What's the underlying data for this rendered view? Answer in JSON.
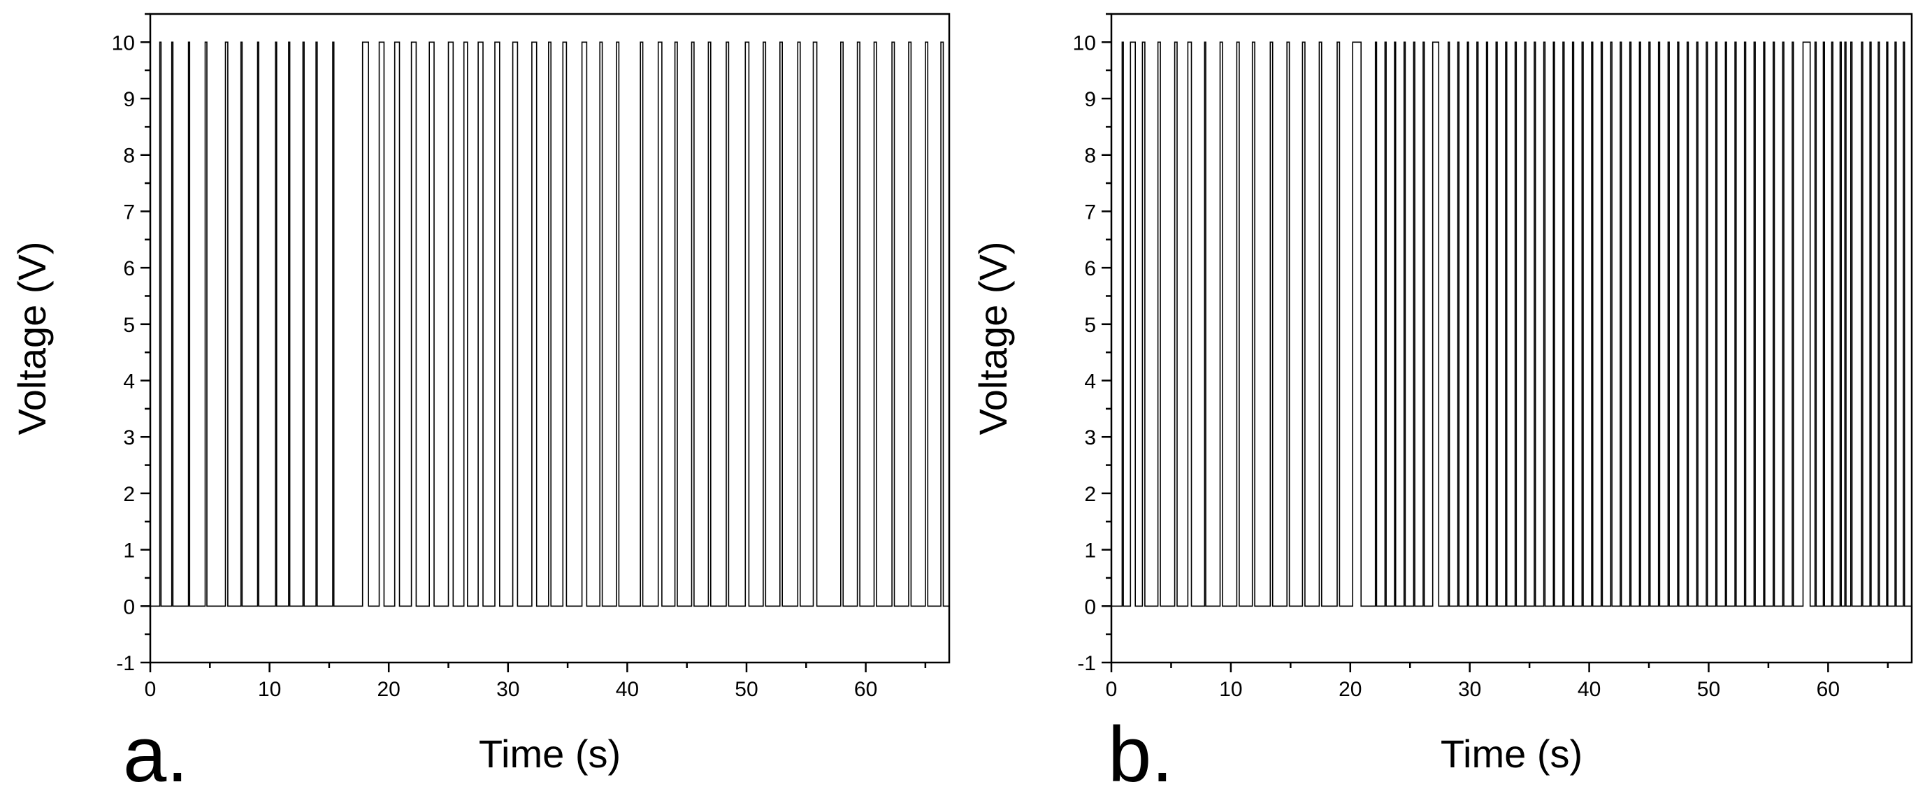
{
  "chart_data": [
    {
      "panel_label": "a.",
      "type": "line",
      "xlabel": "Time (s)",
      "ylabel": "Voltage (V)",
      "xlim": [
        0,
        67
      ],
      "ylim": [
        -1,
        10.5
      ],
      "x_major_ticks": [
        0,
        10,
        20,
        30,
        40,
        50,
        60
      ],
      "y_major_ticks": [
        -1,
        0,
        1,
        2,
        3,
        4,
        5,
        6,
        7,
        8,
        9,
        10
      ],
      "grid": false,
      "low_level": 0,
      "high_level": 10,
      "pulses": [
        [
          0.8,
          0.9
        ],
        [
          1.8,
          1.9
        ],
        [
          3.2,
          3.3
        ],
        [
          4.6,
          4.75
        ],
        [
          6.3,
          6.5
        ],
        [
          7.6,
          7.7
        ],
        [
          9.0,
          9.1
        ],
        [
          10.5,
          10.6
        ],
        [
          11.6,
          11.7
        ],
        [
          12.8,
          12.9
        ],
        [
          13.9,
          14.0
        ],
        [
          15.3,
          15.4
        ],
        [
          17.8,
          18.3
        ],
        [
          19.2,
          19.6
        ],
        [
          20.5,
          20.9
        ],
        [
          21.9,
          22.3
        ],
        [
          23.4,
          23.8
        ],
        [
          25.0,
          25.4
        ],
        [
          26.3,
          26.6
        ],
        [
          27.5,
          27.9
        ],
        [
          28.9,
          29.3
        ],
        [
          30.4,
          30.8
        ],
        [
          32.0,
          32.4
        ],
        [
          33.4,
          33.6
        ],
        [
          34.6,
          34.9
        ],
        [
          36.2,
          36.6
        ],
        [
          37.7,
          37.9
        ],
        [
          39.1,
          39.3
        ],
        [
          41.1,
          41.3
        ],
        [
          42.6,
          42.9
        ],
        [
          44.0,
          44.2
        ],
        [
          45.4,
          45.6
        ],
        [
          46.8,
          47.0
        ],
        [
          48.3,
          48.5
        ],
        [
          49.9,
          50.2
        ],
        [
          51.4,
          51.6
        ],
        [
          52.8,
          53.0
        ],
        [
          54.3,
          54.5
        ],
        [
          55.6,
          55.9
        ],
        [
          57.9,
          58.1
        ],
        [
          59.3,
          59.5
        ],
        [
          60.7,
          60.9
        ],
        [
          62.2,
          62.4
        ],
        [
          63.6,
          63.8
        ],
        [
          65.0,
          65.2
        ],
        [
          66.3,
          66.5
        ]
      ]
    },
    {
      "panel_label": "b.",
      "type": "line",
      "xlabel": "Time (s)",
      "ylabel": "Voltage (V)",
      "xlim": [
        0,
        67
      ],
      "ylim": [
        -1,
        10.5
      ],
      "x_major_ticks": [
        0,
        10,
        20,
        30,
        40,
        50,
        60
      ],
      "y_major_ticks": [
        -1,
        0,
        1,
        2,
        3,
        4,
        5,
        6,
        7,
        8,
        9,
        10
      ],
      "grid": false,
      "low_level": 0,
      "high_level": 10,
      "pulses": [
        [
          0.9,
          1.0
        ],
        [
          1.6,
          2.0
        ],
        [
          2.6,
          2.8
        ],
        [
          3.9,
          4.1
        ],
        [
          5.3,
          5.5
        ],
        [
          6.4,
          6.7
        ],
        [
          7.8,
          7.9
        ],
        [
          9.1,
          9.3
        ],
        [
          10.5,
          10.7
        ],
        [
          11.8,
          12.0
        ],
        [
          13.3,
          13.5
        ],
        [
          14.7,
          14.9
        ],
        [
          16.0,
          16.2
        ],
        [
          17.4,
          17.6
        ],
        [
          18.9,
          19.1
        ],
        [
          20.2,
          20.9
        ],
        [
          22.1,
          22.2
        ],
        [
          22.9,
          23.0
        ],
        [
          23.7,
          23.8
        ],
        [
          24.5,
          24.6
        ],
        [
          25.3,
          25.4
        ],
        [
          26.1,
          26.2
        ],
        [
          26.9,
          27.4
        ],
        [
          28.2,
          28.3
        ],
        [
          29.0,
          29.1
        ],
        [
          29.8,
          29.9
        ],
        [
          30.6,
          30.7
        ],
        [
          31.4,
          31.5
        ],
        [
          32.2,
          32.3
        ],
        [
          33.0,
          33.1
        ],
        [
          33.8,
          33.9
        ],
        [
          34.6,
          34.7
        ],
        [
          35.4,
          35.5
        ],
        [
          36.2,
          36.3
        ],
        [
          37.0,
          37.1
        ],
        [
          37.8,
          37.9
        ],
        [
          38.6,
          38.7
        ],
        [
          39.4,
          39.5
        ],
        [
          40.2,
          40.3
        ],
        [
          41.0,
          41.1
        ],
        [
          41.8,
          41.9
        ],
        [
          42.6,
          42.7
        ],
        [
          43.4,
          43.5
        ],
        [
          44.2,
          44.3
        ],
        [
          45.0,
          45.1
        ],
        [
          45.8,
          45.9
        ],
        [
          46.6,
          46.7
        ],
        [
          47.4,
          47.5
        ],
        [
          48.2,
          48.3
        ],
        [
          49.0,
          49.1
        ],
        [
          49.8,
          49.9
        ],
        [
          50.6,
          50.7
        ],
        [
          51.4,
          51.5
        ],
        [
          52.2,
          52.3
        ],
        [
          53.0,
          53.1
        ],
        [
          53.8,
          53.9
        ],
        [
          54.6,
          54.7
        ],
        [
          55.4,
          55.5
        ],
        [
          56.2,
          56.3
        ],
        [
          57.0,
          57.1
        ],
        [
          57.9,
          58.5
        ],
        [
          58.9,
          59.0
        ],
        [
          59.6,
          59.7
        ],
        [
          60.3,
          60.4
        ],
        [
          61.0,
          61.1
        ],
        [
          61.4,
          61.5
        ],
        [
          61.9,
          62.0
        ],
        [
          62.8,
          62.9
        ],
        [
          63.5,
          63.6
        ],
        [
          64.2,
          64.3
        ],
        [
          64.9,
          65.0
        ],
        [
          65.6,
          65.7
        ],
        [
          66.3,
          66.4
        ]
      ]
    }
  ]
}
